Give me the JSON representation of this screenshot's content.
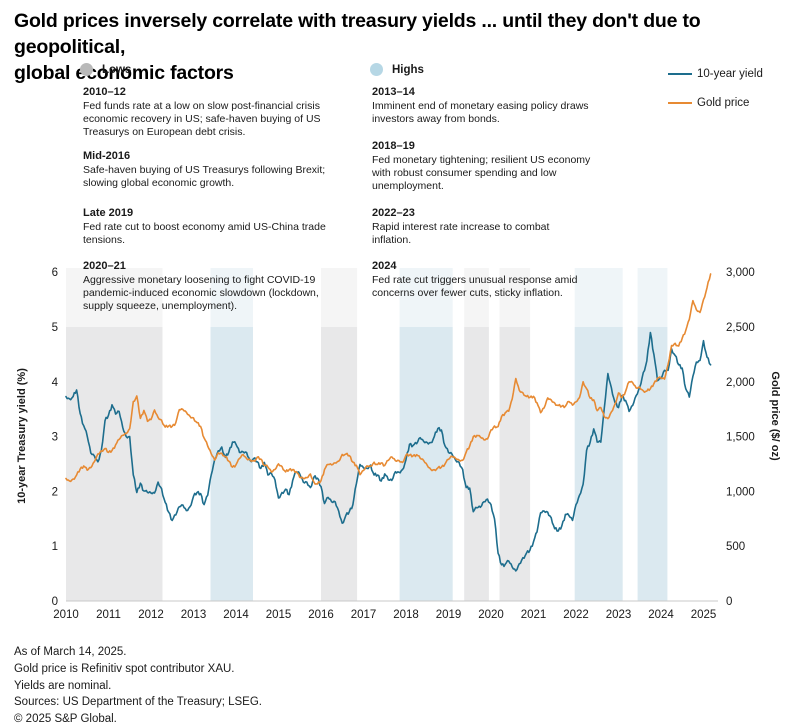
{
  "title": "Gold prices inversely correlate with treasury yields ... until they don't due to geopolitical,\nglobal economic factors",
  "legend": {
    "lows_label": "Lows",
    "highs_label": "Highs",
    "series": [
      {
        "label": "10-year yield",
        "color": "#1d6d8d"
      },
      {
        "label": "Gold price",
        "color": "#e78a33"
      }
    ]
  },
  "annotations": {
    "lows": [
      {
        "period": "2010–12",
        "text": "Fed funds rate at a low on slow post-financial crisis\neconomic recovery in US; safe-haven buying of US\nTreasurys on European debt crisis."
      },
      {
        "period": "Mid-2016",
        "text": "Safe-haven buying of US Treasurys following Brexit;\nslowing global economic growth."
      },
      {
        "period": "Late 2019",
        "text": "Fed rate cut to boost economy amid US-China trade\ntensions."
      },
      {
        "period": "2020–21",
        "text": "Aggressive monetary loosening to fight COVID-19\npandemic-induced economic slowdown (lockdown,\nsupply squeeze, unemployment)."
      }
    ],
    "highs": [
      {
        "period": "2013–14",
        "text": "Imminent end of monetary easing policy draws\ninvestors away from bonds."
      },
      {
        "period": "2018–19",
        "text": "Fed monetary tightening; resilient US economy\nwith robust consumer spending and low\nunemployment."
      },
      {
        "period": "2022–23",
        "text": "Rapid interest rate increase to combat\ninflation."
      },
      {
        "period": "2024",
        "text": "Fed rate cut triggers unusual response amid\nconcerns over fewer cuts, sticky inflation."
      }
    ]
  },
  "chart_data": {
    "type": "line",
    "x_start": 2010,
    "x_step": 0.0833333,
    "x_ticks": [
      "2010",
      "2011",
      "2012",
      "2013",
      "2014",
      "2015",
      "2016",
      "2017",
      "2018",
      "2019",
      "2020",
      "2021",
      "2022",
      "2023",
      "2024",
      "2025"
    ],
    "y_left": {
      "title": "10-year Treasury yield (%)",
      "ticks": [
        "0",
        "1",
        "2",
        "3",
        "4",
        "5",
        "6"
      ],
      "range": [
        0,
        6
      ]
    },
    "y_right": {
      "title": "Gold price ($/ oz)",
      "ticks": [
        "0",
        "500",
        "1,000",
        "1,500",
        "2,000",
        "2,500",
        "3,000"
      ],
      "range": [
        0,
        3000
      ]
    },
    "bands": [
      {
        "from": 2010.0,
        "to": 2012.27,
        "type": "low"
      },
      {
        "from": 2013.4,
        "to": 2014.4,
        "type": "high"
      },
      {
        "from": 2016.0,
        "to": 2016.85,
        "type": "low"
      },
      {
        "from": 2017.85,
        "to": 2019.1,
        "type": "high"
      },
      {
        "from": 2019.37,
        "to": 2019.95,
        "type": "low"
      },
      {
        "from": 2020.2,
        "to": 2020.92,
        "type": "low"
      },
      {
        "from": 2021.97,
        "to": 2023.1,
        "type": "high"
      },
      {
        "from": 2023.45,
        "to": 2024.15,
        "type": "high"
      }
    ],
    "series": [
      {
        "name": "10-year yield",
        "axis": "left",
        "color": "#1d6d8d",
        "values": [
          3.73,
          3.69,
          3.73,
          3.85,
          3.42,
          3.2,
          3.01,
          2.7,
          2.65,
          2.54,
          2.76,
          3.29,
          3.39,
          3.58,
          3.41,
          3.46,
          3.17,
          3.0,
          3.0,
          2.3,
          1.98,
          2.15,
          2.01,
          1.98,
          1.97,
          1.97,
          2.17,
          2.05,
          1.8,
          1.62,
          1.47,
          1.57,
          1.72,
          1.75,
          1.65,
          1.72,
          1.91,
          1.98,
          1.96,
          1.76,
          1.93,
          2.3,
          2.58,
          2.74,
          2.81,
          2.62,
          2.72,
          2.9,
          2.86,
          2.71,
          2.72,
          2.71,
          2.56,
          2.6,
          2.54,
          2.42,
          2.53,
          2.3,
          2.33,
          2.21,
          1.88,
          1.98,
          2.04,
          1.94,
          2.2,
          2.36,
          2.32,
          2.17,
          2.17,
          2.07,
          2.26,
          2.24,
          2.09,
          1.78,
          1.89,
          1.81,
          1.81,
          1.64,
          1.42,
          1.56,
          1.63,
          1.76,
          2.14,
          2.49,
          2.43,
          2.42,
          2.48,
          2.3,
          2.3,
          2.19,
          2.32,
          2.21,
          2.2,
          2.36,
          2.35,
          2.4,
          2.58,
          2.86,
          2.84,
          2.87,
          2.98,
          2.91,
          2.89,
          2.89,
          3.0,
          3.15,
          3.12,
          2.83,
          2.71,
          2.68,
          2.57,
          2.53,
          2.4,
          2.07,
          2.06,
          1.63,
          1.7,
          1.71,
          1.81,
          1.86,
          1.76,
          1.5,
          0.87,
          0.66,
          0.67,
          0.73,
          0.62,
          0.55,
          0.68,
          0.79,
          0.87,
          0.93,
          1.08,
          1.26,
          1.61,
          1.64,
          1.62,
          1.52,
          1.32,
          1.28,
          1.37,
          1.58,
          1.56,
          1.47,
          1.76,
          1.93,
          2.13,
          2.75,
          2.9,
          3.14,
          2.9,
          2.9,
          3.52,
          4.15,
          3.89,
          3.62,
          3.53,
          3.75,
          3.66,
          3.46,
          3.57,
          3.75,
          3.9,
          4.17,
          4.38,
          4.9,
          4.5,
          4.02,
          4.06,
          4.21,
          4.21,
          4.6,
          4.48,
          4.31,
          4.25,
          3.87,
          3.72,
          4.1,
          4.36,
          4.39,
          4.75,
          4.45,
          4.31
        ]
      },
      {
        "name": "Gold price",
        "axis": "right",
        "color": "#e78a33",
        "values": [
          1118,
          1095,
          1113,
          1149,
          1205,
          1232,
          1193,
          1216,
          1271,
          1342,
          1370,
          1391,
          1356,
          1373,
          1424,
          1474,
          1512,
          1529,
          1573,
          1820,
          1870,
          1666,
          1739,
          1640,
          1655,
          1743,
          1674,
          1650,
          1587,
          1597,
          1594,
          1627,
          1745,
          1747,
          1722,
          1685,
          1671,
          1628,
          1593,
          1487,
          1414,
          1343,
          1286,
          1352,
          1348,
          1316,
          1276,
          1222,
          1244,
          1300,
          1336,
          1299,
          1288,
          1279,
          1311,
          1296,
          1238,
          1222,
          1176,
          1200,
          1251,
          1227,
          1178,
          1198,
          1199,
          1181,
          1128,
          1118,
          1125,
          1159,
          1086,
          1068,
          1098,
          1200,
          1246,
          1242,
          1260,
          1276,
          1337,
          1340,
          1327,
          1267,
          1238,
          1152,
          1192,
          1234,
          1231,
          1266,
          1246,
          1260,
          1236,
          1283,
          1315,
          1280,
          1282,
          1265,
          1331,
          1331,
          1325,
          1335,
          1303,
          1281,
          1238,
          1201,
          1198,
          1215,
          1221,
          1250,
          1292,
          1320,
          1301,
          1286,
          1284,
          1359,
          1413,
          1500,
          1511,
          1495,
          1471,
          1479,
          1561,
          1597,
          1591,
          1683,
          1716,
          1732,
          1843,
          2030,
          1922,
          1900,
          1866,
          1858,
          1867,
          1808,
          1718,
          1762,
          1853,
          1835,
          1807,
          1784,
          1777,
          1777,
          1820,
          1787,
          1817,
          1856,
          2000,
          1937,
          1850,
          1836,
          1736,
          1765,
          1681,
          1664,
          1725,
          1797,
          1898,
          1855,
          1913,
          2000,
          1992,
          1943,
          1951,
          1918,
          1915,
          1937,
          1984,
          2034,
          2034,
          2025,
          2160,
          2331,
          2351,
          2327,
          2398,
          2470,
          2568,
          2740,
          2657,
          2633,
          2750,
          2858,
          2984
        ]
      }
    ]
  },
  "footer": {
    "lines": [
      "As of March 14, 2025.",
      "Gold price is Refinitiv spot contributor XAU.",
      "Yields are nominal.",
      "Sources: US Department of the Treasury; LSEG.",
      "© 2025 S&P Global."
    ]
  },
  "colors": {
    "accent_teal": "#1d6d8d",
    "accent_orange": "#e78a33",
    "band_low": "#e8e8e9",
    "band_high": "#dbe9f0",
    "dot_low": "#b9b9b9",
    "dot_high": "#b6d7e5",
    "axis_line": "#c9c9c9"
  }
}
